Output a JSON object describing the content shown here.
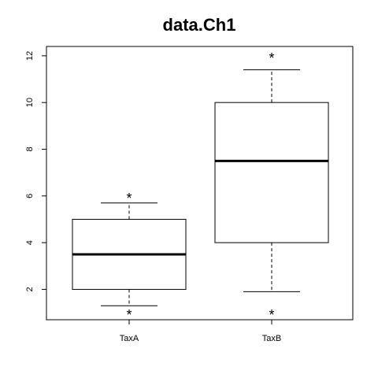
{
  "chart_data": {
    "type": "box",
    "title": "data.Ch1",
    "xlabel": "",
    "ylabel": "",
    "ylim": [
      0.7,
      12.4
    ],
    "yticks": [
      2,
      4,
      6,
      8,
      10,
      12
    ],
    "ytick_labels": [
      "2",
      "4",
      "6",
      "8",
      "10",
      "12"
    ],
    "grid": false,
    "categories": [
      "TaxA",
      "TaxB"
    ],
    "boxes": [
      {
        "name": "TaxA",
        "whisker_low": 1.3,
        "q1": 2.0,
        "median": 3.5,
        "q3": 5.0,
        "whisker_high": 5.7,
        "outliers": [
          1.0,
          6.0
        ]
      },
      {
        "name": "TaxB",
        "whisker_low": 1.9,
        "q1": 4.0,
        "median": 7.5,
        "q3": 10.0,
        "whisker_high": 11.4,
        "outliers": [
          1.0,
          12.0
        ]
      }
    ],
    "outlier_marker": "*",
    "colors": {
      "stroke": "#000000",
      "background": "#ffffff"
    }
  }
}
